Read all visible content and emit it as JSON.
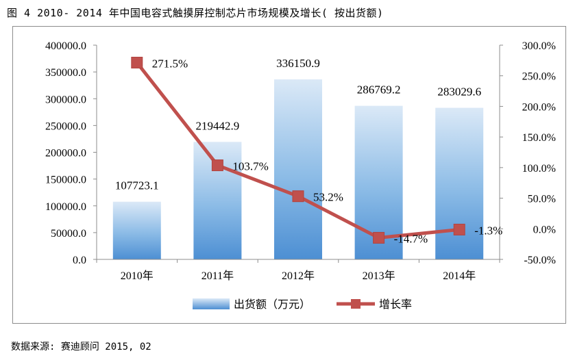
{
  "figure_title": "图 4  2010- 2014 年中国电容式触摸屏控制芯片市场规模及增长( 按出货额)",
  "source_note": "数据来源: 赛迪顾问 2015, 02",
  "chart_data": {
    "type": "bar",
    "categories": [
      "2010年",
      "2011年",
      "2012年",
      "2013年",
      "2014年"
    ],
    "series": [
      {
        "name": "出货额（万元）",
        "type": "bar",
        "axis": "left",
        "values": [
          107723.1,
          219442.9,
          336150.9,
          286769.2,
          283029.6
        ],
        "labels": [
          "107723.1",
          "219442.9",
          "336150.9",
          "286769.2",
          "283029.6"
        ],
        "color": "#5b9bd5"
      },
      {
        "name": "增长率",
        "type": "line",
        "axis": "right",
        "values": [
          271.5,
          103.7,
          53.2,
          -14.7,
          -1.3
        ],
        "labels": [
          "271.5%",
          "103.7%",
          "53.2%",
          "-14.7%",
          "-1.3%"
        ],
        "color": "#c0504d"
      }
    ],
    "y_left": {
      "min": 0,
      "max": 400000,
      "step": 50000,
      "ticks": [
        "0.0",
        "50000.0",
        "100000.0",
        "150000.0",
        "200000.0",
        "250000.0",
        "300000.0",
        "350000.0",
        "400000.0"
      ]
    },
    "y_right": {
      "min": -50,
      "max": 300,
      "step": 50,
      "ticks": [
        "-50.0%",
        "0.0%",
        "50.0%",
        "100.0%",
        "150.0%",
        "200.0%",
        "250.0%",
        "300.0%"
      ]
    },
    "grid": false,
    "legend_position": "bottom",
    "title": "",
    "xlabel": "",
    "ylabel": ""
  }
}
